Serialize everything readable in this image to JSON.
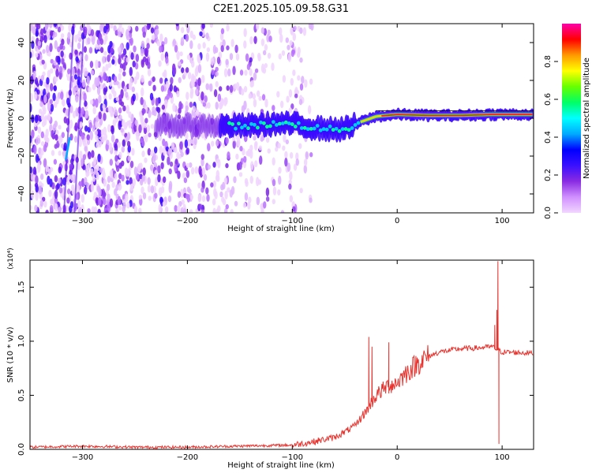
{
  "figure": {
    "title": "C2E1.2025.105.09.58.G31"
  },
  "chart_data": [
    {
      "type": "heatmap",
      "xlabel": "Height of straight line (km)",
      "ylabel": "Frequency (Hz)",
      "xlim": [
        -350,
        130
      ],
      "ylim": [
        -50,
        50
      ],
      "xticks": [
        -300,
        -200,
        -100,
        0,
        100
      ],
      "yticks": [
        -40,
        -20,
        0,
        20,
        40
      ],
      "colorbar": {
        "label": "Normalized spectral amplitude",
        "range": [
          0,
          1
        ],
        "ticks": [
          "0.0",
          "0.2",
          "0.4",
          "0.6",
          "0.8"
        ],
        "colormap": [
          "#f2d6ff",
          "#d090ff",
          "#8a2be2",
          "#3a10ff",
          "#0000ff",
          "#00aaff",
          "#00ffff",
          "#00ff66",
          "#66ff00",
          "#ffff00",
          "#ff9900",
          "#ff0000",
          "#ff00aa"
        ]
      },
      "ridge": [
        {
          "x": -160,
          "y": -4
        },
        {
          "x": -140,
          "y": -4
        },
        {
          "x": -120,
          "y": -3
        },
        {
          "x": -100,
          "y": -3
        },
        {
          "x": -80,
          "y": -5
        },
        {
          "x": -60,
          "y": -6
        },
        {
          "x": -45,
          "y": -5
        },
        {
          "x": -35,
          "y": -2
        },
        {
          "x": -20,
          "y": 1
        },
        {
          "x": 0,
          "y": 2
        },
        {
          "x": 30,
          "y": 1.5
        },
        {
          "x": 60,
          "y": 1.5
        },
        {
          "x": 90,
          "y": 2
        },
        {
          "x": 130,
          "y": 2
        }
      ]
    },
    {
      "type": "line",
      "xlabel": "Height of straight line (km)",
      "ylabel": "SNR (10 * v/v)",
      "yscale_label": "(x10⁴)",
      "xlim": [
        -350,
        130
      ],
      "ylim": [
        0,
        1.75
      ],
      "xticks": [
        -300,
        -200,
        -100,
        0,
        100
      ],
      "yticks": [
        "0.0",
        "0.5",
        "1.0",
        "1.5"
      ],
      "series": [
        {
          "color": "#e8322d",
          "points": [
            {
              "x": -350,
              "y": 0.02
            },
            {
              "x": -300,
              "y": 0.03
            },
            {
              "x": -250,
              "y": 0.02
            },
            {
              "x": -200,
              "y": 0.02
            },
            {
              "x": -150,
              "y": 0.03
            },
            {
              "x": -100,
              "y": 0.04
            },
            {
              "x": -80,
              "y": 0.07
            },
            {
              "x": -60,
              "y": 0.11
            },
            {
              "x": -50,
              "y": 0.16
            },
            {
              "x": -40,
              "y": 0.22
            },
            {
              "x": -30,
              "y": 0.35
            },
            {
              "x": -20,
              "y": 0.5
            },
            {
              "x": -10,
              "y": 0.58
            },
            {
              "x": 0,
              "y": 0.62
            },
            {
              "x": 10,
              "y": 0.72
            },
            {
              "x": 20,
              "y": 0.8
            },
            {
              "x": 30,
              "y": 0.86
            },
            {
              "x": 40,
              "y": 0.9
            },
            {
              "x": 60,
              "y": 0.93
            },
            {
              "x": 80,
              "y": 0.94
            },
            {
              "x": 90,
              "y": 0.95
            },
            {
              "x": 100,
              "y": 0.9
            },
            {
              "x": 130,
              "y": 0.89
            }
          ],
          "spikes": [
            {
              "x": -27,
              "y": 1.04
            },
            {
              "x": -24,
              "y": 0.95
            },
            {
              "x": -8,
              "y": 0.99
            },
            {
              "x": 93,
              "y": 1.15
            },
            {
              "x": 95,
              "y": 1.29
            },
            {
              "x": 96,
              "y": 1.74
            },
            {
              "x": 97,
              "y": 0.05
            }
          ]
        }
      ]
    }
  ]
}
